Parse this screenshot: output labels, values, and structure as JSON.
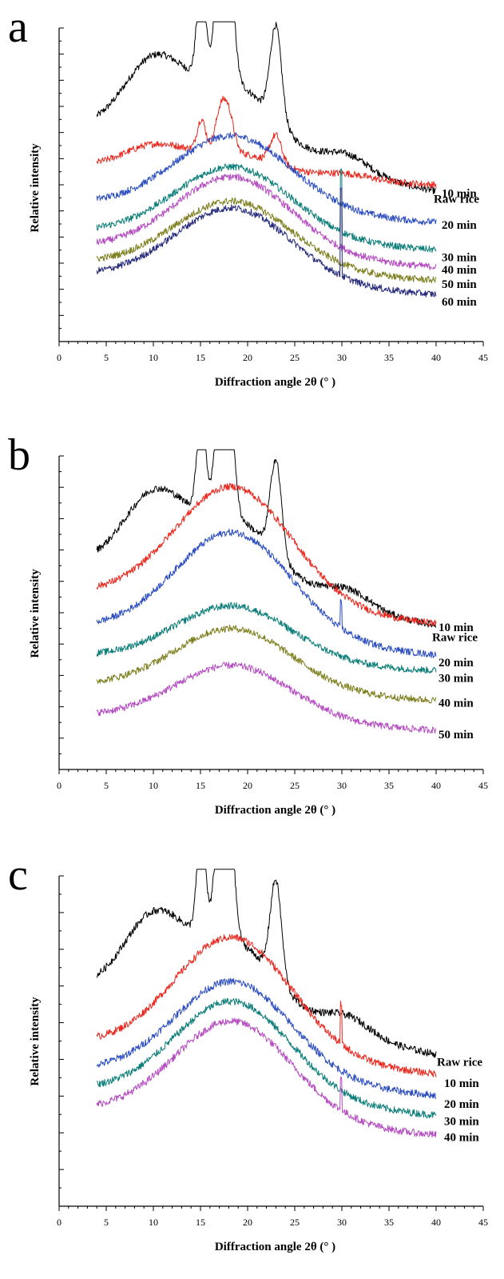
{
  "chart_data": [
    {
      "panel": "a",
      "type": "line",
      "xlabel": "Diffraction angle 2θ (° )",
      "ylabel": "Relative intensity",
      "xlim": [
        0,
        45
      ],
      "x_ticks": [
        0,
        5,
        10,
        15,
        20,
        25,
        30,
        35,
        40,
        45
      ],
      "x_range": [
        4,
        40
      ],
      "y_tick_labels": "none",
      "series": [
        {
          "name": "Raw rice",
          "color": "#000000",
          "profile": "raw",
          "baseline": 0.68,
          "scale": 1.0,
          "spike": 0
        },
        {
          "name": "10 min",
          "color": "#e8281f",
          "profile": "raw",
          "baseline": 0.56,
          "scale": 0.3,
          "spike": 0
        },
        {
          "name": "20 min",
          "color": "#2b4dbf",
          "profile": "amorphous",
          "baseline": 0.44,
          "scale": 0.24,
          "spike": 0
        },
        {
          "name": "30 min",
          "color": "#0a7d78",
          "profile": "amorphous",
          "baseline": 0.35,
          "scale": 0.23,
          "spike": 0.2
        },
        {
          "name": "40 min",
          "color": "#b44bc0",
          "profile": "amorphous",
          "baseline": 0.3,
          "scale": 0.25,
          "spike": 0
        },
        {
          "name": "50 min",
          "color": "#7d7f1e",
          "profile": "amorphous",
          "baseline": 0.25,
          "scale": 0.22,
          "spike": 0
        },
        {
          "name": "60 min",
          "color": "#252a7a",
          "profile": "amorphous",
          "baseline": 0.21,
          "scale": 0.24,
          "spike": 0.28
        }
      ]
    },
    {
      "panel": "b",
      "type": "line",
      "xlabel": "Diffraction angle 2θ (° )",
      "ylabel": "Relative intensity",
      "xlim": [
        0,
        45
      ],
      "x_ticks": [
        0,
        5,
        10,
        15,
        20,
        25,
        30,
        35,
        40,
        45
      ],
      "x_range": [
        4,
        40
      ],
      "y_tick_labels": "none",
      "series": [
        {
          "name": "Raw rice",
          "color": "#000000",
          "profile": "raw",
          "baseline": 0.66,
          "scale": 1.0,
          "spike": 0
        },
        {
          "name": "10 min",
          "color": "#e8281f",
          "profile": "amorphous",
          "baseline": 0.56,
          "scale": 0.38,
          "spike": 0
        },
        {
          "name": "20 min",
          "color": "#2b4dbf",
          "profile": "amorphous",
          "baseline": 0.45,
          "scale": 0.34,
          "spike": 0.08
        },
        {
          "name": "30 min",
          "color": "#0a7d78",
          "profile": "amorphous",
          "baseline": 0.36,
          "scale": 0.18,
          "spike": 0
        },
        {
          "name": "40 min",
          "color": "#7d7f1e",
          "profile": "amorphous",
          "baseline": 0.27,
          "scale": 0.2,
          "spike": 0
        },
        {
          "name": "50 min",
          "color": "#b44bc0",
          "profile": "amorphous",
          "baseline": 0.17,
          "scale": 0.18,
          "spike": 0
        }
      ]
    },
    {
      "panel": "c",
      "type": "line",
      "xlabel": "Diffraction angle 2θ (° )",
      "ylabel": "Relative intensity",
      "xlim": [
        0,
        45
      ],
      "x_ticks": [
        0,
        5,
        10,
        15,
        20,
        25,
        30,
        35,
        40,
        45
      ],
      "x_range": [
        4,
        40
      ],
      "y_tick_labels": "none",
      "series": [
        {
          "name": "Raw rice",
          "color": "#000000",
          "profile": "raw",
          "baseline": 0.66,
          "scale": 1.0,
          "spike": 0
        },
        {
          "name": "10 min",
          "color": "#e8281f",
          "profile": "amorphous",
          "baseline": 0.49,
          "scale": 0.36,
          "spike": 0.12
        },
        {
          "name": "20 min",
          "color": "#2b4dbf",
          "profile": "amorphous",
          "baseline": 0.41,
          "scale": 0.3,
          "spike": 0
        },
        {
          "name": "30 min",
          "color": "#0a7d78",
          "profile": "amorphous",
          "baseline": 0.35,
          "scale": 0.3,
          "spike": 0
        },
        {
          "name": "40 min",
          "color": "#b44bc0",
          "profile": "amorphous",
          "baseline": 0.29,
          "scale": 0.3,
          "spike": 0.1
        }
      ]
    }
  ]
}
